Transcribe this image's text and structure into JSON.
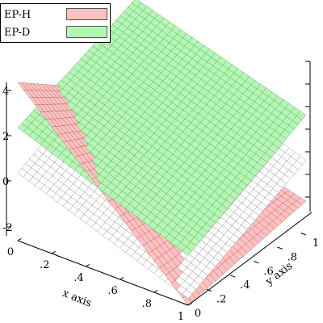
{
  "chart_data": {
    "type": "surface3d",
    "title": "",
    "xlabel": "x axis",
    "ylabel": "y axis",
    "zlabel": "",
    "xlim": [
      0,
      1
    ],
    "ylim": [
      0,
      1
    ],
    "zlim": [
      -3,
      4.6
    ],
    "x_ticks": [
      0,
      0.2,
      0.4,
      0.6,
      0.8,
      1
    ],
    "x_tick_labels": [
      "0",
      ".2",
      ".4",
      ".6",
      ".8",
      "1"
    ],
    "y_ticks": [
      0,
      0.2,
      0.4,
      0.6,
      0.8,
      1
    ],
    "y_tick_labels": [
      "0",
      ".2",
      ".4",
      ".6",
      ".8",
      "1"
    ],
    "z_ticks": [
      -2,
      0,
      2,
      4
    ],
    "z_tick_labels": [
      "-2",
      "0",
      "2",
      "4"
    ],
    "grid": false,
    "legend_position": "top-left",
    "series": [
      {
        "name": "EP-H",
        "color": "#ffc0c0",
        "edge_color": "#7a3a3a",
        "corner_values": {
          "x0y0": 4.0,
          "x1y0": -3.0,
          "x1y1": -1.5,
          "x0y1": 0.5
        }
      },
      {
        "name": "EP-D",
        "color": "#b4f7b4",
        "edge_color": "#2f6a2f",
        "corner_values": {
          "x0y0": 2.0,
          "x1y0": -0.8,
          "x1y1": 2.3,
          "x0y1": 4.6
        }
      },
      {
        "name": "",
        "color": "#ffffff",
        "edge_color": "#555555",
        "corner_values": {
          "x0y0": 0.0,
          "x1y0": -2.7,
          "x1y1": 0.3,
          "x0y1": 3.0
        }
      }
    ]
  }
}
